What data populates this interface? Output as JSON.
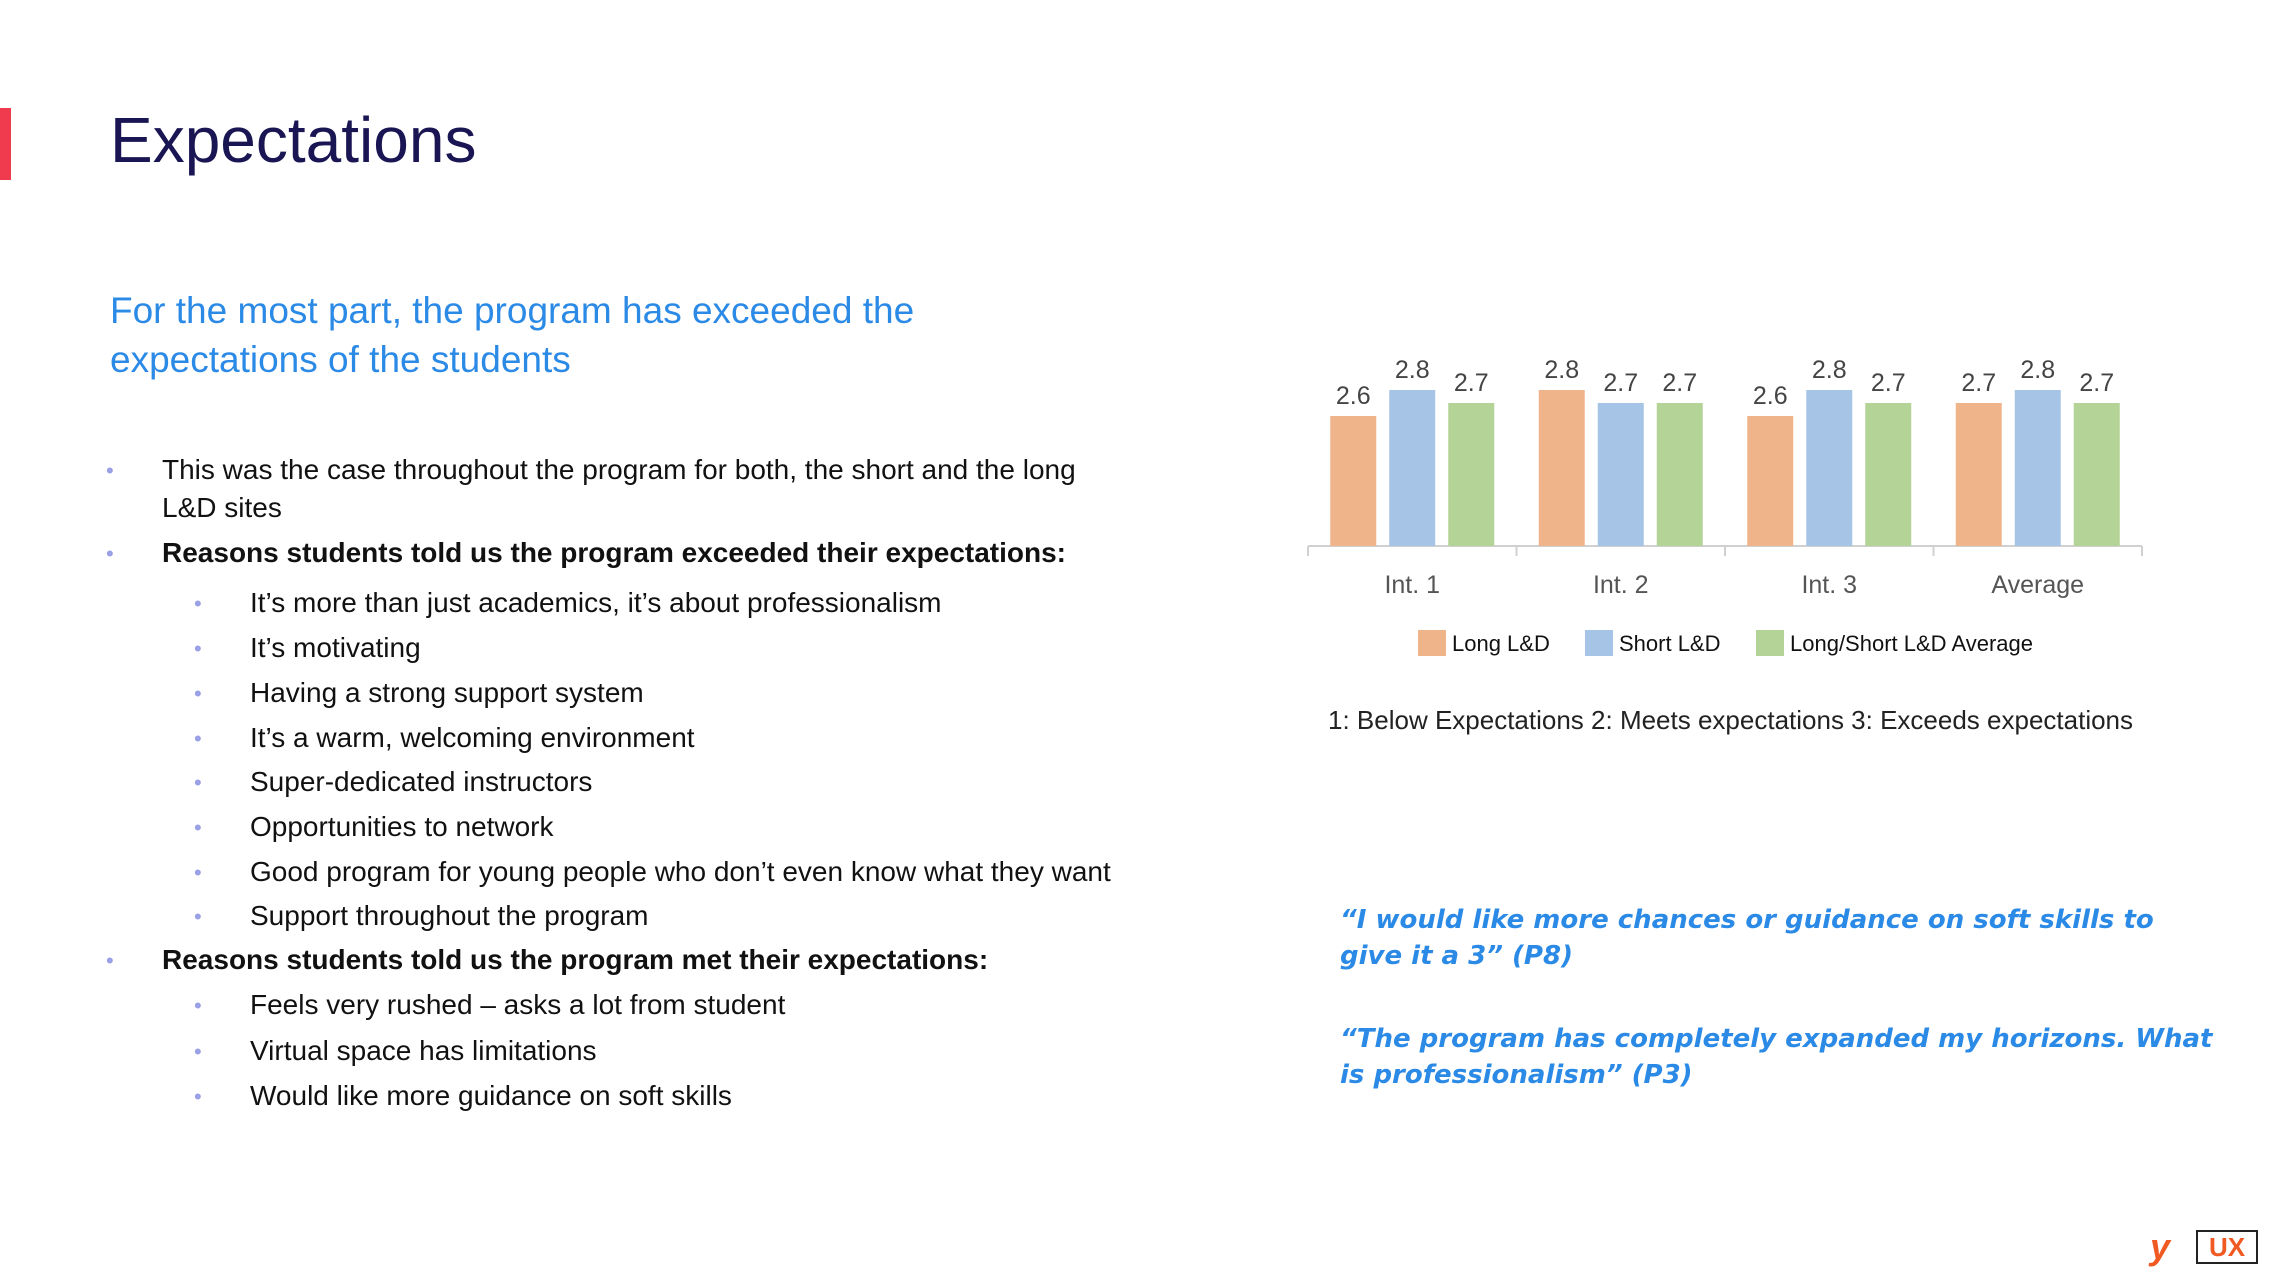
{
  "title": "Expectations",
  "subtitle": "For the most part, the program has exceeded the expectations of the students",
  "bullets": {
    "b1": "This was the case throughout the program for both, the short and the long",
    "b1_cont": "L&D sites",
    "b2": "Reasons students told us the program exceeded their expectations:",
    "exceeded": [
      "It’s more than just academics, it’s about professionalism",
      "It’s motivating",
      "Having a strong support system",
      "It’s a warm, welcoming environment",
      "Super-dedicated instructors",
      "Opportunities to network",
      "Good program for young people who don’t even know what they want",
      "Support throughout the program"
    ],
    "b3": "Reasons students told us the program met their expectations:",
    "met": [
      "Feels very rushed – asks a lot from student",
      "Virtual space has limitations",
      "Would like more guidance on soft skills"
    ]
  },
  "chart_data": {
    "type": "bar",
    "categories": [
      "Int. 1",
      "Int. 2",
      "Int. 3",
      "Average"
    ],
    "series": [
      {
        "name": "Long L&D",
        "values": [
          2.6,
          2.8,
          2.6,
          2.7
        ],
        "color": "#f0b48a"
      },
      {
        "name": "Short L&D",
        "values": [
          2.8,
          2.7,
          2.8,
          2.8
        ],
        "color": "#a5c4e6"
      },
      {
        "name": "Long/Short L&D Average",
        "values": [
          2.7,
          2.7,
          2.7,
          2.7
        ],
        "color": "#b3d397"
      }
    ],
    "data_labels": true,
    "legend_position": "bottom",
    "grid": false
  },
  "scale_note": "1:  Below  Expectations 2: Meets expectations 3: Exceeds  expectations",
  "quotes": [
    "“I would like more chances or guidance on soft skills to give it a 3” (P8)",
    "“The program has completely expanded my horizons. What is professionalism” (P3)"
  ],
  "logo": {
    "mark": "y",
    "box": "UX",
    "color": "#f05a22"
  }
}
